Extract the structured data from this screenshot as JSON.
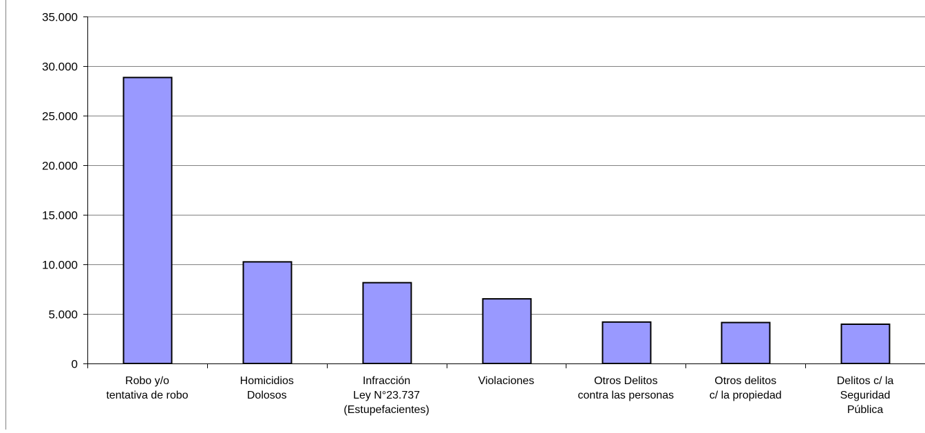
{
  "chart_data": {
    "type": "bar",
    "title": "",
    "xlabel": "",
    "ylabel": "",
    "categories": [
      [
        "Robo y/o",
        "tentativa de robo"
      ],
      [
        "Homicidios",
        "Dolosos"
      ],
      [
        "Infracción",
        "Ley N°23.737",
        "(Estupefacientes)"
      ],
      [
        "Violaciones"
      ],
      [
        "Otros Delitos",
        "contra las personas"
      ],
      [
        "Otros delitos",
        "c/ la propiedad"
      ],
      [
        "Delitos c/ la",
        "Seguridad",
        "Pública"
      ]
    ],
    "values": [
      28850,
      10250,
      8150,
      6520,
      4180,
      4130,
      3960
    ],
    "ylim": [
      0,
      35000
    ],
    "yticks": [
      0,
      5000,
      10000,
      15000,
      20000,
      25000,
      30000,
      35000
    ],
    "ytick_labels": [
      "0",
      "5.000",
      "10.000",
      "15.000",
      "20.000",
      "25.000",
      "30.000",
      "35.000"
    ],
    "grid": true,
    "legend": "none",
    "colors": {
      "bar_fill": "#9999FF",
      "bar_stroke": "#000000",
      "grid": "#808080",
      "axis": "#000000"
    }
  }
}
